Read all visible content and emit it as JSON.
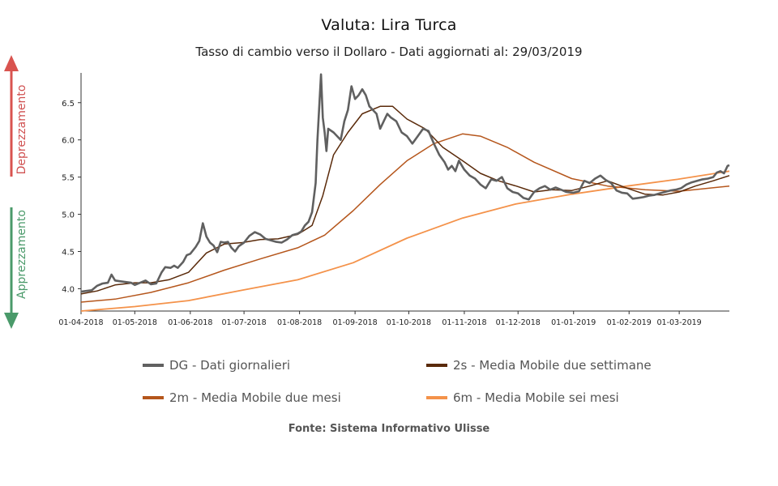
{
  "colors": {
    "dg": "#606060",
    "ma2s": "#5a2a0a",
    "ma2m": "#b5561c",
    "ma6m": "#f4924a",
    "up_arrow": "#d9534f",
    "down_arrow": "#4a9a6a",
    "depr_text": "#d05050",
    "appr_text": "#4a9a6a"
  },
  "side": {
    "top": "Deprezzamento",
    "bottom": "Apprezzamento"
  },
  "chart_data": {
    "type": "line",
    "title": "Valuta: Lira Turca",
    "subtitle": "Tasso di cambio verso il Dollaro - Dati aggiornati al: 29/03/2019",
    "source": "Fonte: Sistema Informativo Ulisse",
    "x_start": "2018-04-01",
    "x_end": "2019-03-29",
    "xticks": [
      "01-04-2018",
      "01-05-2018",
      "01-06-2018",
      "01-07-2018",
      "01-08-2018",
      "01-09-2018",
      "01-10-2018",
      "01-11-2018",
      "01-12-2018",
      "01-01-2019",
      "01-02-2019",
      "01-03-2019"
    ],
    "yticks": [
      "4.0",
      "4.5",
      "5.0",
      "5.5",
      "6.0",
      "6.5"
    ],
    "ylim": [
      3.7,
      6.9
    ],
    "grid": false,
    "legend_position": "bottom",
    "series": [
      {
        "name": "DG - Dati giornalieri",
        "points": [
          [
            "2018-04-01",
            3.96
          ],
          [
            "2018-04-04",
            3.97
          ],
          [
            "2018-04-07",
            3.98
          ],
          [
            "2018-04-10",
            4.04
          ],
          [
            "2018-04-13",
            4.07
          ],
          [
            "2018-04-16",
            4.08
          ],
          [
            "2018-04-18",
            4.19
          ],
          [
            "2018-04-20",
            4.11
          ],
          [
            "2018-04-23",
            4.1
          ],
          [
            "2018-04-26",
            4.09
          ],
          [
            "2018-04-29",
            4.08
          ],
          [
            "2018-05-01",
            4.05
          ],
          [
            "2018-05-04",
            4.08
          ],
          [
            "2018-05-07",
            4.11
          ],
          [
            "2018-05-10",
            4.06
          ],
          [
            "2018-05-13",
            4.07
          ],
          [
            "2018-05-16",
            4.22
          ],
          [
            "2018-05-18",
            4.29
          ],
          [
            "2018-05-21",
            4.28
          ],
          [
            "2018-05-23",
            4.31
          ],
          [
            "2018-05-25",
            4.28
          ],
          [
            "2018-05-28",
            4.36
          ],
          [
            "2018-05-30",
            4.45
          ],
          [
            "2018-06-01",
            4.47
          ],
          [
            "2018-06-04",
            4.56
          ],
          [
            "2018-06-06",
            4.64
          ],
          [
            "2018-06-08",
            4.88
          ],
          [
            "2018-06-10",
            4.7
          ],
          [
            "2018-06-12",
            4.62
          ],
          [
            "2018-06-14",
            4.58
          ],
          [
            "2018-06-16",
            4.49
          ],
          [
            "2018-06-18",
            4.63
          ],
          [
            "2018-06-20",
            4.62
          ],
          [
            "2018-06-22",
            4.63
          ],
          [
            "2018-06-24",
            4.55
          ],
          [
            "2018-06-26",
            4.5
          ],
          [
            "2018-06-28",
            4.57
          ],
          [
            "2018-07-01",
            4.62
          ],
          [
            "2018-07-04",
            4.71
          ],
          [
            "2018-07-07",
            4.76
          ],
          [
            "2018-07-10",
            4.73
          ],
          [
            "2018-07-13",
            4.67
          ],
          [
            "2018-07-16",
            4.65
          ],
          [
            "2018-07-19",
            4.63
          ],
          [
            "2018-07-22",
            4.62
          ],
          [
            "2018-07-25",
            4.66
          ],
          [
            "2018-07-28",
            4.72
          ],
          [
            "2018-07-31",
            4.74
          ],
          [
            "2018-08-02",
            4.77
          ],
          [
            "2018-08-04",
            4.85
          ],
          [
            "2018-08-06",
            4.9
          ],
          [
            "2018-08-08",
            5.03
          ],
          [
            "2018-08-10",
            5.42
          ],
          [
            "2018-08-11",
            6.0
          ],
          [
            "2018-08-13",
            6.88
          ],
          [
            "2018-08-14",
            6.3
          ],
          [
            "2018-08-15",
            6.1
          ],
          [
            "2018-08-16",
            5.85
          ],
          [
            "2018-08-17",
            6.15
          ],
          [
            "2018-08-20",
            6.1
          ],
          [
            "2018-08-22",
            6.05
          ],
          [
            "2018-08-24",
            6.0
          ],
          [
            "2018-08-26",
            6.25
          ],
          [
            "2018-08-28",
            6.4
          ],
          [
            "2018-08-30",
            6.72
          ],
          [
            "2018-09-01",
            6.55
          ],
          [
            "2018-09-03",
            6.6
          ],
          [
            "2018-09-05",
            6.68
          ],
          [
            "2018-09-07",
            6.6
          ],
          [
            "2018-09-09",
            6.45
          ],
          [
            "2018-09-11",
            6.4
          ],
          [
            "2018-09-13",
            6.35
          ],
          [
            "2018-09-15",
            6.15
          ],
          [
            "2018-09-17",
            6.25
          ],
          [
            "2018-09-19",
            6.35
          ],
          [
            "2018-09-21",
            6.3
          ],
          [
            "2018-09-24",
            6.25
          ],
          [
            "2018-09-27",
            6.1
          ],
          [
            "2018-09-30",
            6.05
          ],
          [
            "2018-10-03",
            5.95
          ],
          [
            "2018-10-06",
            6.05
          ],
          [
            "2018-10-09",
            6.15
          ],
          [
            "2018-10-12",
            6.12
          ],
          [
            "2018-10-15",
            5.95
          ],
          [
            "2018-10-18",
            5.8
          ],
          [
            "2018-10-21",
            5.7
          ],
          [
            "2018-10-23",
            5.6
          ],
          [
            "2018-10-25",
            5.65
          ],
          [
            "2018-10-27",
            5.58
          ],
          [
            "2018-10-29",
            5.72
          ],
          [
            "2018-11-01",
            5.6
          ],
          [
            "2018-11-04",
            5.52
          ],
          [
            "2018-11-07",
            5.48
          ],
          [
            "2018-11-10",
            5.4
          ],
          [
            "2018-11-13",
            5.35
          ],
          [
            "2018-11-16",
            5.47
          ],
          [
            "2018-11-19",
            5.45
          ],
          [
            "2018-11-22",
            5.5
          ],
          [
            "2018-11-25",
            5.35
          ],
          [
            "2018-11-28",
            5.3
          ],
          [
            "2018-12-01",
            5.28
          ],
          [
            "2018-12-04",
            5.22
          ],
          [
            "2018-12-07",
            5.2
          ],
          [
            "2018-12-10",
            5.3
          ],
          [
            "2018-12-13",
            5.35
          ],
          [
            "2018-12-16",
            5.38
          ],
          [
            "2018-12-19",
            5.33
          ],
          [
            "2018-12-22",
            5.36
          ],
          [
            "2018-12-25",
            5.33
          ],
          [
            "2018-12-28",
            5.3
          ],
          [
            "2019-01-01",
            5.29
          ],
          [
            "2019-01-04",
            5.31
          ],
          [
            "2019-01-07",
            5.45
          ],
          [
            "2019-01-10",
            5.42
          ],
          [
            "2019-01-13",
            5.48
          ],
          [
            "2019-01-16",
            5.52
          ],
          [
            "2019-01-19",
            5.46
          ],
          [
            "2019-01-22",
            5.42
          ],
          [
            "2019-01-25",
            5.32
          ],
          [
            "2019-01-28",
            5.29
          ],
          [
            "2019-01-31",
            5.28
          ],
          [
            "2019-02-03",
            5.21
          ],
          [
            "2019-02-06",
            5.22
          ],
          [
            "2019-02-09",
            5.23
          ],
          [
            "2019-02-12",
            5.25
          ],
          [
            "2019-02-15",
            5.26
          ],
          [
            "2019-02-18",
            5.28
          ],
          [
            "2019-02-21",
            5.3
          ],
          [
            "2019-02-24",
            5.32
          ],
          [
            "2019-02-27",
            5.33
          ],
          [
            "2019-03-02",
            5.35
          ],
          [
            "2019-03-05",
            5.4
          ],
          [
            "2019-03-08",
            5.43
          ],
          [
            "2019-03-11",
            5.45
          ],
          [
            "2019-03-14",
            5.47
          ],
          [
            "2019-03-17",
            5.48
          ],
          [
            "2019-03-20",
            5.5
          ],
          [
            "2019-03-22",
            5.56
          ],
          [
            "2019-03-24",
            5.58
          ],
          [
            "2019-03-26",
            5.55
          ],
          [
            "2019-03-28",
            5.65
          ],
          [
            "2019-03-29",
            5.66
          ]
        ]
      },
      {
        "name": "2s - Media Mobile due settimane",
        "points": [
          [
            "2018-04-01",
            3.93
          ],
          [
            "2018-04-10",
            3.97
          ],
          [
            "2018-04-20",
            4.05
          ],
          [
            "2018-05-01",
            4.08
          ],
          [
            "2018-05-10",
            4.08
          ],
          [
            "2018-05-20",
            4.12
          ],
          [
            "2018-05-31",
            4.22
          ],
          [
            "2018-06-10",
            4.48
          ],
          [
            "2018-06-20",
            4.6
          ],
          [
            "2018-06-30",
            4.62
          ],
          [
            "2018-07-10",
            4.66
          ],
          [
            "2018-07-20",
            4.67
          ],
          [
            "2018-07-31",
            4.73
          ],
          [
            "2018-08-08",
            4.85
          ],
          [
            "2018-08-14",
            5.25
          ],
          [
            "2018-08-20",
            5.8
          ],
          [
            "2018-08-28",
            6.1
          ],
          [
            "2018-09-05",
            6.35
          ],
          [
            "2018-09-15",
            6.45
          ],
          [
            "2018-09-22",
            6.45
          ],
          [
            "2018-09-30",
            6.28
          ],
          [
            "2018-10-10",
            6.15
          ],
          [
            "2018-10-20",
            5.9
          ],
          [
            "2018-10-31",
            5.72
          ],
          [
            "2018-11-10",
            5.55
          ],
          [
            "2018-11-20",
            5.45
          ],
          [
            "2018-11-30",
            5.38
          ],
          [
            "2018-12-10",
            5.3
          ],
          [
            "2018-12-20",
            5.33
          ],
          [
            "2018-12-31",
            5.32
          ],
          [
            "2019-01-10",
            5.38
          ],
          [
            "2019-01-20",
            5.45
          ],
          [
            "2019-01-31",
            5.35
          ],
          [
            "2019-02-10",
            5.27
          ],
          [
            "2019-02-20",
            5.26
          ],
          [
            "2019-03-01",
            5.3
          ],
          [
            "2019-03-10",
            5.38
          ],
          [
            "2019-03-20",
            5.45
          ],
          [
            "2019-03-29",
            5.52
          ]
        ]
      },
      {
        "name": "2m - Media Mobile due mesi",
        "points": [
          [
            "2018-04-01",
            3.82
          ],
          [
            "2018-04-20",
            3.86
          ],
          [
            "2018-05-10",
            3.95
          ],
          [
            "2018-05-31",
            4.08
          ],
          [
            "2018-06-20",
            4.25
          ],
          [
            "2018-07-10",
            4.4
          ],
          [
            "2018-07-31",
            4.55
          ],
          [
            "2018-08-15",
            4.72
          ],
          [
            "2018-08-31",
            5.05
          ],
          [
            "2018-09-15",
            5.4
          ],
          [
            "2018-09-30",
            5.72
          ],
          [
            "2018-10-15",
            5.95
          ],
          [
            "2018-10-31",
            6.08
          ],
          [
            "2018-11-10",
            6.05
          ],
          [
            "2018-11-25",
            5.9
          ],
          [
            "2018-12-10",
            5.7
          ],
          [
            "2018-12-31",
            5.48
          ],
          [
            "2019-01-20",
            5.38
          ],
          [
            "2019-02-10",
            5.33
          ],
          [
            "2019-03-01",
            5.31
          ],
          [
            "2019-03-29",
            5.38
          ]
        ]
      },
      {
        "name": "6m - Media Mobile sei mesi",
        "points": [
          [
            "2018-04-01",
            3.7
          ],
          [
            "2018-05-01",
            3.76
          ],
          [
            "2018-05-31",
            3.84
          ],
          [
            "2018-06-30",
            3.98
          ],
          [
            "2018-07-31",
            4.12
          ],
          [
            "2018-08-31",
            4.35
          ],
          [
            "2018-09-30",
            4.68
          ],
          [
            "2018-10-31",
            4.95
          ],
          [
            "2018-11-30",
            5.14
          ],
          [
            "2018-12-31",
            5.27
          ],
          [
            "2019-01-31",
            5.38
          ],
          [
            "2019-02-28",
            5.47
          ],
          [
            "2019-03-29",
            5.58
          ]
        ]
      }
    ]
  }
}
